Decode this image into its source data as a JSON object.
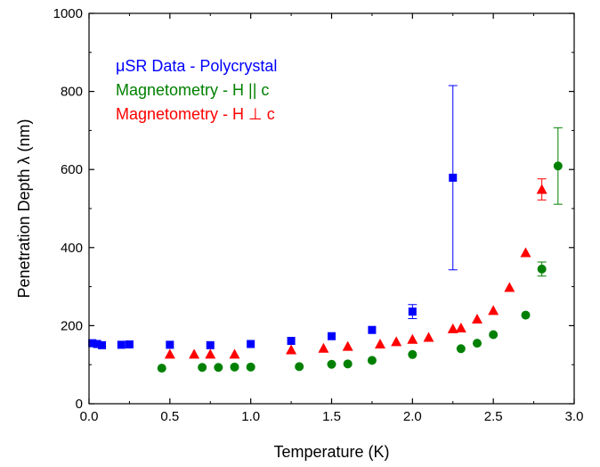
{
  "chart_data": {
    "type": "scatter",
    "xlabel": "Temperature (K)",
    "ylabel": "Penetration Depth λ (nm)",
    "xlim": [
      0.0,
      3.0
    ],
    "ylim": [
      0,
      1000
    ],
    "x_ticks": [
      0.0,
      0.5,
      1.0,
      1.5,
      2.0,
      2.5,
      3.0
    ],
    "x_tick_labels": [
      "0.0",
      "0.5",
      "1.0",
      "1.5",
      "2.0",
      "2.5",
      "3.0"
    ],
    "y_ticks": [
      0,
      200,
      400,
      600,
      800,
      1000
    ],
    "y_tick_labels": [
      "0",
      "200",
      "400",
      "600",
      "800",
      "1000"
    ],
    "grid": false,
    "legend_position": "top-left",
    "series": [
      {
        "name": "μSR Data - Polycrystal",
        "marker": "square",
        "color": "#0000ff",
        "points": [
          {
            "x": 0.02,
            "y": 155
          },
          {
            "x": 0.05,
            "y": 153
          },
          {
            "x": 0.08,
            "y": 150
          },
          {
            "x": 0.2,
            "y": 151
          },
          {
            "x": 0.25,
            "y": 152
          },
          {
            "x": 0.5,
            "y": 151
          },
          {
            "x": 0.75,
            "y": 150
          },
          {
            "x": 1.0,
            "y": 153
          },
          {
            "x": 1.25,
            "y": 161
          },
          {
            "x": 1.5,
            "y": 173
          },
          {
            "x": 1.75,
            "y": 189
          },
          {
            "x": 2.0,
            "y": 236,
            "err": 18
          },
          {
            "x": 2.25,
            "y": 579,
            "err": 236
          }
        ]
      },
      {
        "name": "Magnetometry - H || c",
        "marker": "circle",
        "color": "#008000",
        "points": [
          {
            "x": 0.45,
            "y": 91
          },
          {
            "x": 0.7,
            "y": 93
          },
          {
            "x": 0.8,
            "y": 93
          },
          {
            "x": 0.9,
            "y": 94
          },
          {
            "x": 1.0,
            "y": 94
          },
          {
            "x": 1.3,
            "y": 95
          },
          {
            "x": 1.5,
            "y": 101
          },
          {
            "x": 1.6,
            "y": 102
          },
          {
            "x": 1.75,
            "y": 111
          },
          {
            "x": 2.0,
            "y": 126
          },
          {
            "x": 2.3,
            "y": 141
          },
          {
            "x": 2.4,
            "y": 155
          },
          {
            "x": 2.5,
            "y": 177
          },
          {
            "x": 2.7,
            "y": 227
          },
          {
            "x": 2.8,
            "y": 345,
            "err": 18
          },
          {
            "x": 2.9,
            "y": 609,
            "err": 98
          }
        ]
      },
      {
        "name": "Magnetometry - H ⊥ c",
        "marker": "triangle",
        "color": "#ff0000",
        "points": [
          {
            "x": 0.5,
            "y": 127
          },
          {
            "x": 0.65,
            "y": 127
          },
          {
            "x": 0.75,
            "y": 127
          },
          {
            "x": 0.9,
            "y": 127
          },
          {
            "x": 1.25,
            "y": 138
          },
          {
            "x": 1.45,
            "y": 142
          },
          {
            "x": 1.6,
            "y": 147
          },
          {
            "x": 1.8,
            "y": 153
          },
          {
            "x": 1.9,
            "y": 159
          },
          {
            "x": 2.0,
            "y": 165
          },
          {
            "x": 2.1,
            "y": 170
          },
          {
            "x": 2.25,
            "y": 192
          },
          {
            "x": 2.3,
            "y": 194
          },
          {
            "x": 2.4,
            "y": 217
          },
          {
            "x": 2.5,
            "y": 239
          },
          {
            "x": 2.6,
            "y": 298
          },
          {
            "x": 2.7,
            "y": 387
          },
          {
            "x": 2.8,
            "y": 549,
            "err": 27
          }
        ]
      }
    ]
  }
}
